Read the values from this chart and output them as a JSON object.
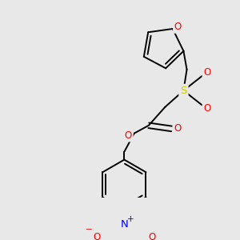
{
  "bg_color": "#e8e8e8",
  "bond_color": "#000000",
  "atom_colors": {
    "O": "#ff0000",
    "S": "#cccc00",
    "N": "#0000ff"
  },
  "lw": 1.4,
  "font_size": 8.5
}
